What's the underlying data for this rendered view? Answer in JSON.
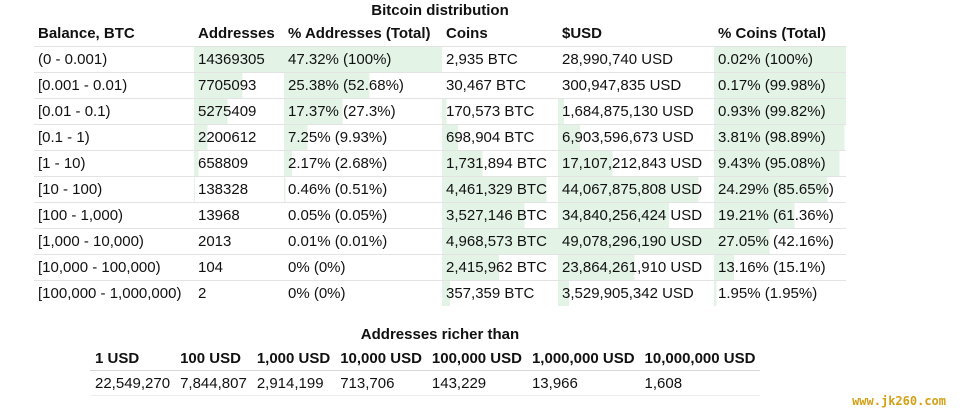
{
  "title": "Bitcoin distribution",
  "distribution": {
    "headers": [
      "Balance, BTC",
      "Addresses",
      "% Addresses (Total)",
      "Coins",
      "$USD",
      "% Coins (Total)"
    ],
    "rows": [
      {
        "balance": "(0 - 0.001)",
        "addresses": "14369305",
        "pct_addresses": "47.32% (100%)",
        "coins": "2,935 BTC",
        "usd": "28,990,740 USD",
        "pct_coins": "0.02% (100%)",
        "bar_addresses": 1.0,
        "bar_coins": 0.0,
        "bar_pct_coins": 1.0
      },
      {
        "balance": "[0.001 - 0.01)",
        "addresses": "7705093",
        "pct_addresses": "25.38% (52.68%)",
        "coins": "30,467 BTC",
        "usd": "300,947,835 USD",
        "pct_coins": "0.17% (99.98%)",
        "bar_addresses": 0.54,
        "bar_coins": 0.0,
        "bar_pct_coins": 1.0
      },
      {
        "balance": "[0.01 - 0.1)",
        "addresses": "5275409",
        "pct_addresses": "17.37% (27.3%)",
        "coins": "170,573 BTC",
        "usd": "1,684,875,130 USD",
        "pct_coins": "0.93% (99.82%)",
        "bar_addresses": 0.37,
        "bar_coins": 0.04,
        "bar_pct_coins": 1.0
      },
      {
        "balance": "[0.1 - 1)",
        "addresses": "2200612",
        "pct_addresses": "7.25% (9.93%)",
        "coins": "698,904 BTC",
        "usd": "6,903,596,673 USD",
        "pct_coins": "3.81% (98.89%)",
        "bar_addresses": 0.15,
        "bar_coins": 0.14,
        "bar_pct_coins": 0.99
      },
      {
        "balance": "[1 - 10)",
        "addresses": "658809",
        "pct_addresses": "2.17% (2.68%)",
        "coins": "1,731,894 BTC",
        "usd": "17,107,212,843 USD",
        "pct_coins": "9.43% (95.08%)",
        "bar_addresses": 0.05,
        "bar_coins": 0.35,
        "bar_pct_coins": 0.95
      },
      {
        "balance": "[10 - 100)",
        "addresses": "138328",
        "pct_addresses": "0.46% (0.51%)",
        "coins": "4,461,329 BTC",
        "usd": "44,067,875,808 USD",
        "pct_coins": "24.29% (85.65%)",
        "bar_addresses": 0.01,
        "bar_coins": 0.9,
        "bar_pct_coins": 0.86
      },
      {
        "balance": "[100 - 1,000)",
        "addresses": "13968",
        "pct_addresses": "0.05% (0.05%)",
        "coins": "3,527,146 BTC",
        "usd": "34,840,256,424 USD",
        "pct_coins": "19.21% (61.36%)",
        "bar_addresses": 0.0,
        "bar_coins": 0.71,
        "bar_pct_coins": 0.61
      },
      {
        "balance": "[1,000 - 10,000)",
        "addresses": "2013",
        "pct_addresses": "0.01% (0.01%)",
        "coins": "4,968,573 BTC",
        "usd": "49,078,296,190 USD",
        "pct_coins": "27.05% (42.16%)",
        "bar_addresses": 0.0,
        "bar_coins": 1.0,
        "bar_pct_coins": 0.42
      },
      {
        "balance": "[10,000 - 100,000)",
        "addresses": "104",
        "pct_addresses": "0% (0%)",
        "coins": "2,415,962 BTC",
        "usd": "23,864,261,910 USD",
        "pct_coins": "13.16% (15.1%)",
        "bar_addresses": 0.0,
        "bar_coins": 0.49,
        "bar_pct_coins": 0.15
      },
      {
        "balance": "[100,000 - 1,000,000)",
        "addresses": "2",
        "pct_addresses": "0% (0%)",
        "coins": "357,359 BTC",
        "usd": "3,529,905,342 USD",
        "pct_coins": "1.95% (1.95%)",
        "bar_addresses": 0.0,
        "bar_coins": 0.07,
        "bar_pct_coins": 0.02
      }
    ]
  },
  "richer": {
    "title": "Addresses richer than",
    "headers": [
      "1 USD",
      "100 USD",
      "1,000 USD",
      "10,000 USD",
      "100,000 USD",
      "1,000,000 USD",
      "10,000,000 USD"
    ],
    "values": [
      "22,549,270",
      "7,844,807",
      "2,914,199",
      "713,706",
      "143,229",
      "13,966",
      "1,608"
    ]
  },
  "watermark": "www.jk260.com",
  "colors": {
    "bar_fill": "#e3f3e6",
    "text": "#111111",
    "watermark": "#d4a017"
  }
}
